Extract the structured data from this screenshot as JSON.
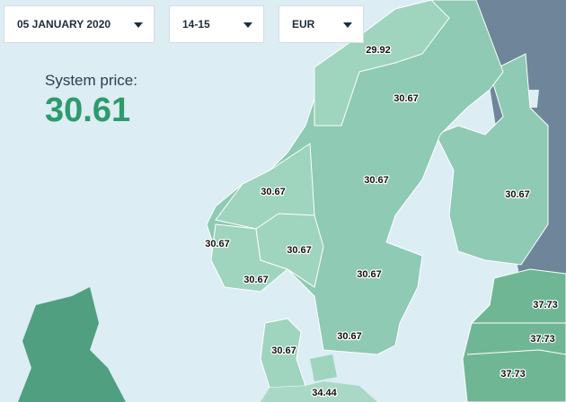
{
  "controls": {
    "date": "05 JANUARY 2020",
    "hour": "14-15",
    "currency": "EUR"
  },
  "system_price": {
    "label": "System price:",
    "value": 30.61
  },
  "areas": [
    {
      "price": 29.92
    },
    {
      "price": 30.67
    },
    {
      "price": 30.67
    },
    {
      "price": 30.67
    },
    {
      "price": 30.67
    },
    {
      "price": 30.67
    },
    {
      "price": 30.67
    },
    {
      "price": 30.67
    },
    {
      "price": 30.67
    },
    {
      "price": 30.67
    },
    {
      "price": 30.67
    },
    {
      "price": 37.73
    },
    {
      "price": 37.73
    },
    {
      "price": 37.73
    },
    {
      "price": 34.44
    }
  ]
}
